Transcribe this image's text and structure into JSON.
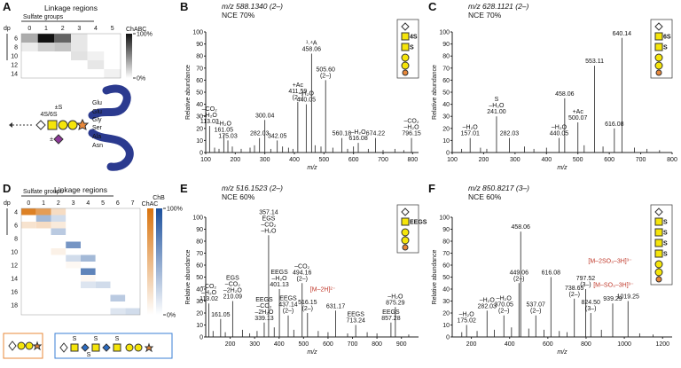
{
  "chart_data": [
    {
      "type": "heatmap",
      "label": "A",
      "title": "Linkage regions",
      "xlabel": "Sulfate groups",
      "ylabel": "dp",
      "categories": [
        0,
        1,
        2,
        3,
        4,
        5
      ],
      "rows": [
        6,
        8,
        10,
        12,
        14
      ],
      "series": [
        {
          "name": "ChABC",
          "color": "#111111",
          "values": [
            [
              35,
              100,
              65,
              10,
              0,
              0
            ],
            [
              8,
              20,
              25,
              10,
              0,
              0
            ],
            [
              0,
              0,
              0,
              12,
              6,
              0
            ],
            [
              0,
              0,
              0,
              0,
              10,
              0
            ],
            [
              0,
              0,
              0,
              0,
              0,
              6
            ]
          ]
        }
      ],
      "clim": [
        0,
        100
      ],
      "cticks": [
        {
          "value": 100,
          "label": "100%"
        },
        {
          "value": 0,
          "label": "0%"
        }
      ]
    },
    {
      "type": "spectrum",
      "label": "B",
      "title": "m/z 588.1340 (2–)",
      "subtitle": "NCE 70%",
      "xlabel": "m/z",
      "ylabel": "Relative abundance",
      "xlim": [
        100,
        820
      ],
      "xticks": [
        100,
        200,
        300,
        400,
        500,
        600,
        700,
        800
      ],
      "ylim": [
        0,
        100
      ],
      "yticks": [
        0,
        10,
        20,
        30,
        40,
        50,
        60,
        70,
        80,
        90,
        100
      ],
      "color": "#222222",
      "x": [
        113.03,
        161.05,
        175.03,
        282.03,
        300.04,
        342.05,
        411.59,
        440.05,
        458.06,
        505.6,
        560.18,
        616.08,
        674.22,
        796.15,
        130,
        145,
        190,
        220,
        250,
        265,
        320,
        360,
        380,
        395,
        470,
        490,
        530,
        580,
        600,
        650,
        700,
        740,
        770
      ],
      "values": [
        22,
        15,
        10,
        12,
        27,
        10,
        42,
        40,
        82,
        60,
        12,
        8,
        12,
        12,
        4,
        3,
        5,
        3,
        4,
        6,
        3,
        5,
        4,
        3,
        6,
        5,
        4,
        3,
        5,
        3,
        2,
        3,
        2
      ],
      "peak_labels": [
        [
          "–CO₂",
          "–H₂O",
          "113.03"
        ],
        [
          "–H₂O",
          "161.05"
        ],
        [
          "175.03"
        ],
        [
          "282.03"
        ],
        [
          "300.04"
        ],
        [
          "342.05"
        ],
        [
          "+Ac",
          "411.59",
          "(2–)"
        ],
        [
          "–H₂O",
          "440.05"
        ],
        [
          "¹˒⁴A",
          "458.06"
        ],
        [
          "505.60",
          "(2–)"
        ],
        [
          "560.18"
        ],
        [
          "–H₂O",
          "616.08"
        ],
        [
          "674.22"
        ],
        [
          "–CO₂",
          "–H₂O",
          "796.15"
        ],
        null,
        null,
        null,
        null,
        null,
        null,
        null,
        null,
        null,
        null,
        null,
        null,
        null,
        null,
        null,
        null,
        null,
        null,
        null
      ],
      "structure": [
        "4S",
        "S"
      ]
    },
    {
      "type": "spectrum",
      "label": "C",
      "title": "m/z 628.1121 (2–)",
      "subtitle": "NCE 70%",
      "xlabel": "m/z",
      "ylabel": "Relative abundance",
      "xlim": [
        100,
        800
      ],
      "xticks": [
        100,
        200,
        300,
        400,
        500,
        600,
        700,
        800
      ],
      "ylim": [
        0,
        100
      ],
      "yticks": [
        0,
        10,
        20,
        30,
        40,
        50,
        60,
        70,
        80,
        90,
        100
      ],
      "color": "#222222",
      "x": [
        157.01,
        241.0,
        282.03,
        440.05,
        458.06,
        500.07,
        553.11,
        616.08,
        640.14,
        130,
        190,
        210,
        330,
        360,
        400,
        520,
        580,
        680,
        720,
        760
      ],
      "values": [
        12,
        30,
        12,
        12,
        45,
        25,
        72,
        20,
        95,
        3,
        4,
        3,
        5,
        3,
        4,
        6,
        5,
        4,
        3,
        2
      ],
      "peak_labels": [
        [
          "–H₂O",
          "157.01"
        ],
        [
          "S",
          "–H₂O",
          "241.00"
        ],
        [
          "282.03"
        ],
        [
          "–H₂O",
          "440.05"
        ],
        [
          "458.06"
        ],
        [
          "+Ac",
          "500.07"
        ],
        [
          "553.11"
        ],
        [
          "616.08"
        ],
        [
          "640.14"
        ],
        null,
        null,
        null,
        null,
        null,
        null,
        null,
        null,
        null,
        null,
        null
      ],
      "structure": [
        "6S",
        "S"
      ]
    },
    {
      "type": "heatmap",
      "label": "D",
      "title": "Linkage regions",
      "xlabel": "Sulfate groups",
      "ylabel": "dp",
      "categories": [
        0,
        1,
        2,
        3,
        4,
        5,
        6,
        7
      ],
      "rows": [
        4,
        6,
        8,
        10,
        12,
        14,
        16,
        18
      ],
      "series": [
        {
          "name": "ChAC",
          "color": "#d9730d",
          "values": [
            [
              90,
              70,
              25,
              0,
              0,
              0,
              0,
              0
            ],
            [
              20,
              25,
              15,
              0,
              0,
              0,
              0,
              0
            ],
            [
              0,
              0,
              0,
              0,
              0,
              0,
              0,
              0
            ],
            [
              0,
              0,
              10,
              0,
              0,
              0,
              0,
              0
            ],
            [
              0,
              0,
              0,
              5,
              0,
              0,
              0,
              0
            ],
            [
              0,
              0,
              0,
              0,
              5,
              0,
              0,
              0
            ],
            [
              0,
              0,
              0,
              0,
              0,
              0,
              0,
              0
            ],
            [
              0,
              0,
              0,
              0,
              0,
              0,
              0,
              0
            ]
          ]
        },
        {
          "name": "ChB",
          "color": "#1a4f9c",
          "values": [
            [
              0,
              40,
              20,
              0,
              0,
              0,
              0,
              0
            ],
            [
              0,
              0,
              30,
              0,
              0,
              0,
              0,
              0
            ],
            [
              0,
              0,
              0,
              60,
              0,
              0,
              0,
              0
            ],
            [
              0,
              0,
              0,
              20,
              40,
              0,
              0,
              0
            ],
            [
              0,
              0,
              0,
              0,
              70,
              0,
              0,
              0
            ],
            [
              0,
              0,
              0,
              0,
              15,
              20,
              0,
              0
            ],
            [
              0,
              0,
              0,
              0,
              0,
              0,
              30,
              0
            ],
            [
              0,
              0,
              0,
              0,
              0,
              0,
              15,
              20
            ]
          ]
        }
      ],
      "clim": [
        0,
        100
      ],
      "cticks": [
        {
          "value": 100,
          "label": "100%"
        },
        {
          "value": 0,
          "label": "0%"
        }
      ]
    },
    {
      "type": "spectrum",
      "label": "E",
      "title": "m/z 516.1523 (2–)",
      "subtitle": "NCE 60%",
      "xlabel": "m/z",
      "ylabel": "Relative abundance",
      "xlim": [
        100,
        970
      ],
      "xticks": [
        200,
        300,
        400,
        500,
        600,
        700,
        800,
        900
      ],
      "ylim": [
        0,
        100
      ],
      "yticks": [
        0,
        10,
        20,
        30,
        40,
        50,
        60,
        70,
        80,
        90,
        100
      ],
      "color": "#222222",
      "x": [
        113.02,
        161.05,
        210.09,
        339.13,
        357.14,
        401.13,
        437.14,
        494.16,
        516.15,
        631.17,
        713.24,
        857.28,
        875.29,
        130,
        180,
        250,
        280,
        310,
        380,
        460,
        560,
        600,
        680,
        760,
        800,
        930
      ],
      "values": [
        28,
        15,
        30,
        12,
        85,
        40,
        18,
        45,
        20,
        22,
        10,
        12,
        25,
        5,
        4,
        6,
        3,
        5,
        8,
        6,
        5,
        4,
        3,
        4,
        3,
        2
      ],
      "peak_labels": [
        [
          "–CO₂",
          "–H₂O",
          "113.02"
        ],
        [
          "161.05"
        ],
        [
          "EGS",
          "–CO₂",
          "–2H₂O",
          "210.09"
        ],
        [
          "EEGS",
          "–CO₂",
          "–2H₂O",
          "339.13"
        ],
        [
          "357.14",
          "EGS",
          "–CO₂",
          "–H₂O"
        ],
        [
          "EEGS",
          "–H₂O",
          "401.13"
        ],
        [
          "EEGS",
          "437.14",
          "(2–)"
        ],
        [
          "–CO₂",
          "494.16",
          "(2–)"
        ],
        [
          "516.15",
          "(2–)"
        ],
        [
          "631.17"
        ],
        [
          "EEGS",
          "713.24"
        ],
        [
          "EEGS",
          "857.28"
        ],
        [
          "–H₂O",
          "875.29"
        ],
        null,
        null,
        null,
        null,
        null,
        null,
        null,
        null,
        null,
        null,
        null,
        null,
        null
      ],
      "annotations": [
        {
          "text": "[M–2H]²⁻",
          "x": 516.15,
          "y": 38,
          "color": "#c0392b"
        }
      ],
      "structure": [
        "EEGS"
      ]
    },
    {
      "type": "spectrum",
      "label": "F",
      "title": "m/z 850.8217 (3–)",
      "subtitle": "NCE 60%",
      "xlabel": "m/z",
      "ylabel": "Relative abundance",
      "xlim": [
        100,
        1250
      ],
      "xticks": [
        200,
        400,
        600,
        800,
        1000,
        1200
      ],
      "ylim": [
        0,
        100
      ],
      "yticks": [
        0,
        10,
        20,
        30,
        40,
        50,
        60,
        70,
        80,
        90,
        100
      ],
      "color": "#222222",
      "x": [
        175.02,
        282.03,
        370.05,
        449.06,
        458.06,
        537.07,
        616.08,
        738.65,
        797.52,
        824.5,
        939.29,
        1019.25,
        150,
        230,
        320,
        410,
        500,
        580,
        660,
        700,
        880,
        1080,
        1150
      ],
      "values": [
        10,
        22,
        18,
        45,
        88,
        18,
        50,
        32,
        40,
        20,
        28,
        30,
        4,
        5,
        6,
        8,
        7,
        6,
        5,
        4,
        6,
        3,
        2
      ],
      "peak_labels": [
        [
          "–H₂O",
          "175.02"
        ],
        [
          "–H₂O",
          "282.03"
        ],
        [
          "–H₂O",
          "370.05",
          "(2–)"
        ],
        [
          "449.06",
          "(2–)"
        ],
        [
          "458.06"
        ],
        [
          "537.07",
          "(2–)"
        ],
        [
          "616.08"
        ],
        [
          "738.65",
          "(2–)"
        ],
        [
          "797.52",
          "(3–)"
        ],
        [
          "824.50",
          "(3–)"
        ],
        [
          "939.29"
        ],
        [
          "1019.25"
        ],
        null,
        null,
        null,
        null,
        null,
        null,
        null,
        null,
        null,
        null,
        null
      ],
      "annotations": [
        {
          "text": "[M–2SO₃–3H]³⁻",
          "x": 797.52,
          "y": 62,
          "color": "#c0392b"
        },
        {
          "text": "[M–SO₃–3H]³⁻",
          "x": 824.5,
          "y": 42,
          "color": "#c0392b"
        }
      ],
      "structure": [
        "S",
        "S",
        "S",
        "S"
      ]
    }
  ],
  "schematic": {
    "labels": [
      "4S/6S",
      "±S",
      "±",
      "Glu",
      "Glu",
      "Gly",
      "Ser",
      "Ala",
      "Asn"
    ]
  },
  "d_legend": {
    "labels": [
      "S",
      "S",
      "S",
      "S"
    ]
  }
}
